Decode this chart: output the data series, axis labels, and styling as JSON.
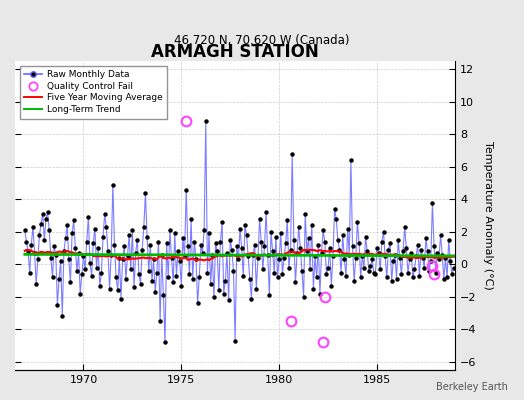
{
  "title": "ARMAGH STATION",
  "subtitle": "46.720 N, 70.620 W (Canada)",
  "ylabel": "Temperature Anomaly (°C)",
  "watermark": "Berkeley Earth",
  "xlim": [
    1966.5,
    1989.0
  ],
  "ylim": [
    -6.5,
    12.5
  ],
  "yticks": [
    -6,
    -4,
    -2,
    0,
    2,
    4,
    6,
    8,
    10,
    12
  ],
  "xticks": [
    1970,
    1975,
    1980,
    1985
  ],
  "line_color": "#6666ff",
  "dot_color": "#000000",
  "ma_color": "#ff0000",
  "trend_color": "#00bb00",
  "qc_color": "#ff44ff",
  "bg_color": "#e8e8e8",
  "plot_bg": "#ffffff",
  "start_year": 1967,
  "end_year": 1988,
  "months": 12,
  "raw_values": [
    2.1,
    1.4,
    0.8,
    -0.5,
    1.2,
    2.3,
    0.7,
    -1.2,
    0.3,
    1.8,
    2.5,
    3.1,
    1.5,
    2.8,
    3.2,
    2.1,
    0.4,
    -0.8,
    1.1,
    0.6,
    -2.5,
    -0.9,
    0.2,
    -3.2,
    0.8,
    1.6,
    2.4,
    0.3,
    -1.1,
    1.9,
    2.7,
    1.0,
    -0.4,
    0.7,
    -1.8,
    -0.6,
    0.5,
    -0.3,
    1.4,
    2.9,
    0.1,
    -0.7,
    1.3,
    2.2,
    -0.2,
    1.0,
    -1.3,
    -0.5,
    1.7,
    3.1,
    2.3,
    0.8,
    -1.5,
    0.6,
    4.9,
    1.2,
    -0.8,
    -1.6,
    0.4,
    -2.1,
    0.3,
    1.1,
    -0.9,
    0.5,
    1.8,
    -0.3,
    2.1,
    -1.4,
    0.7,
    1.5,
    -0.6,
    -1.2,
    0.9,
    2.3,
    4.4,
    1.7,
    -0.4,
    1.2,
    -1.0,
    0.3,
    -1.7,
    -0.5,
    1.4,
    -3.5,
    0.6,
    -1.9,
    -4.8,
    1.3,
    -0.8,
    2.1,
    0.4,
    -1.1,
    1.9,
    -0.7,
    0.8,
    0.2,
    -1.3,
    1.6,
    0.5,
    4.6,
    1.1,
    -0.6,
    2.8,
    -0.9,
    1.4,
    0.3,
    -2.4,
    -0.8,
    1.2,
    0.7,
    2.1,
    8.8,
    -0.5,
    1.9,
    -1.2,
    0.6,
    -2.0,
    1.3,
    0.8,
    -1.6,
    1.4,
    2.6,
    -1.8,
    -1.0,
    0.7,
    -2.2,
    1.5,
    0.9,
    -0.4,
    -4.7,
    1.1,
    0.3,
    2.2,
    1.0,
    -0.7,
    2.4,
    1.8,
    0.5,
    -0.9,
    -2.1,
    0.6,
    1.2,
    -1.5,
    0.4,
    2.8,
    1.4,
    -0.3,
    1.1,
    3.2,
    0.6,
    -1.9,
    2.0,
    0.8,
    -0.5,
    1.7,
    -0.8,
    0.3,
    1.9,
    -0.6,
    0.4,
    1.3,
    2.7,
    -0.2,
    0.9,
    6.8,
    1.5,
    -1.1,
    0.7,
    2.3,
    1.0,
    -0.4,
    -2.0,
    3.1,
    0.8,
    1.6,
    -0.3,
    2.4,
    -1.5,
    0.5,
    -0.8,
    1.2,
    -1.8,
    0.7,
    2.1,
    1.4,
    -0.6,
    -0.2,
    1.0,
    -1.3,
    0.5,
    3.4,
    2.8,
    1.5,
    0.9,
    -0.5,
    1.8,
    0.3,
    -0.7,
    2.2,
    0.6,
    6.4,
    1.1,
    -1.0,
    0.4,
    2.6,
    1.3,
    -0.8,
    0.5,
    -0.2,
    1.7,
    0.8,
    -0.4,
    -0.1,
    0.3,
    -0.5,
    -0.6,
    1.0,
    0.7,
    -0.3,
    1.4,
    2.0,
    0.5,
    -0.8,
    0.9,
    1.3,
    -1.0,
    0.2,
    0.6,
    -0.9,
    1.5,
    0.4,
    -0.6,
    0.8,
    2.3,
    1.0,
    -0.5,
    0.3,
    0.7,
    -0.8,
    -0.3,
    0.5,
    1.2,
    -0.7,
    0.9,
    0.4,
    -0.2,
    1.6,
    0.8,
    -0.4,
    0.2,
    3.8,
    1.1,
    -0.5,
    0.7,
    0.3,
    1.8,
    0.6,
    -0.9,
    0.4,
    -0.8,
    1.5,
    0.2,
    -0.6,
    -0.2
  ],
  "qc_indices": [
    99,
    163,
    183,
    184,
    250,
    251
  ],
  "qc_values": [
    8.8,
    -3.5,
    -4.8,
    -2.0,
    -0.1,
    -0.6
  ]
}
